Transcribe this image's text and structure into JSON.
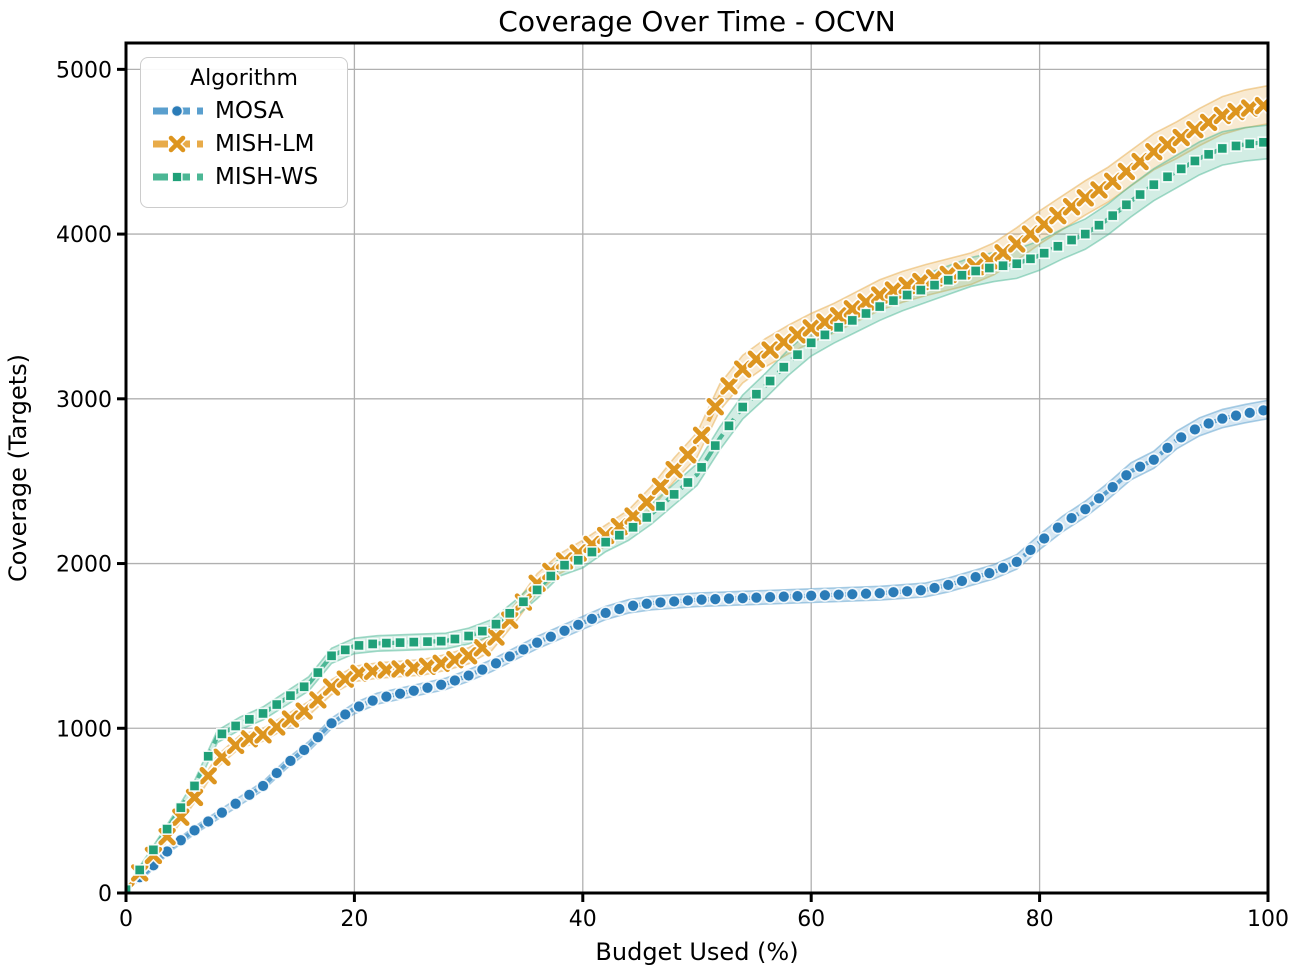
{
  "legend": {
    "title": "Algorithm"
  },
  "chart_data": {
    "type": "line",
    "title": "Coverage Over Time - OCVN",
    "xlabel": "Budget Used (%)",
    "ylabel": "Coverage (Targets)",
    "xlim": [
      0,
      100
    ],
    "ylim": [
      0,
      5160
    ],
    "xticks": [
      0,
      20,
      40,
      60,
      80,
      100
    ],
    "yticks": [
      0,
      1000,
      2000,
      3000,
      4000,
      5000
    ],
    "grid": true,
    "legend_position": "upper left",
    "x": [
      0,
      2,
      4,
      6,
      8,
      10,
      12,
      14,
      16,
      18,
      20,
      22,
      24,
      26,
      28,
      30,
      32,
      34,
      36,
      38,
      40,
      42,
      44,
      46,
      48,
      50,
      52,
      54,
      56,
      58,
      60,
      62,
      64,
      66,
      68,
      70,
      72,
      74,
      76,
      78,
      80,
      82,
      84,
      86,
      88,
      90,
      92,
      94,
      96,
      98,
      100
    ],
    "series": [
      {
        "name": "MOSA",
        "marker": "circle",
        "color": "#2b7cb8",
        "line_color": "#5a9fce",
        "band_base": 18,
        "band_frac": 0.013,
        "values": [
          30,
          140,
          280,
          380,
          470,
          560,
          650,
          780,
          890,
          1030,
          1120,
          1180,
          1210,
          1240,
          1270,
          1320,
          1380,
          1450,
          1520,
          1580,
          1640,
          1700,
          1740,
          1760,
          1770,
          1780,
          1785,
          1790,
          1795,
          1800,
          1805,
          1810,
          1815,
          1820,
          1830,
          1840,
          1870,
          1910,
          1950,
          2010,
          2130,
          2240,
          2330,
          2440,
          2560,
          2630,
          2750,
          2830,
          2880,
          2910,
          2935
        ]
      },
      {
        "name": "MISH-LM",
        "marker": "x",
        "color": "#dd951f",
        "line_color": "#e8ab49",
        "band_base": 20,
        "band_frac": 0.02,
        "values": [
          20,
          190,
          380,
          580,
          800,
          920,
          960,
          1040,
          1120,
          1250,
          1330,
          1350,
          1360,
          1370,
          1400,
          1440,
          1520,
          1690,
          1880,
          2000,
          2080,
          2170,
          2260,
          2400,
          2570,
          2720,
          3010,
          3180,
          3280,
          3360,
          3430,
          3490,
          3560,
          3630,
          3680,
          3720,
          3755,
          3790,
          3850,
          3940,
          4040,
          4130,
          4220,
          4300,
          4400,
          4500,
          4570,
          4650,
          4720,
          4760,
          4785
        ]
      },
      {
        "name": "MISH-WS",
        "marker": "square",
        "color": "#1fa078",
        "line_color": "#4cb795",
        "band_base": 20,
        "band_frac": 0.018,
        "values": [
          20,
          220,
          430,
          650,
          950,
          1030,
          1090,
          1180,
          1270,
          1440,
          1500,
          1515,
          1520,
          1525,
          1530,
          1560,
          1610,
          1720,
          1840,
          1980,
          2030,
          2130,
          2200,
          2300,
          2420,
          2540,
          2760,
          2950,
          3080,
          3220,
          3340,
          3420,
          3490,
          3560,
          3620,
          3670,
          3720,
          3770,
          3800,
          3820,
          3870,
          3940,
          4000,
          4090,
          4200,
          4300,
          4380,
          4460,
          4520,
          4545,
          4560
        ]
      }
    ]
  }
}
